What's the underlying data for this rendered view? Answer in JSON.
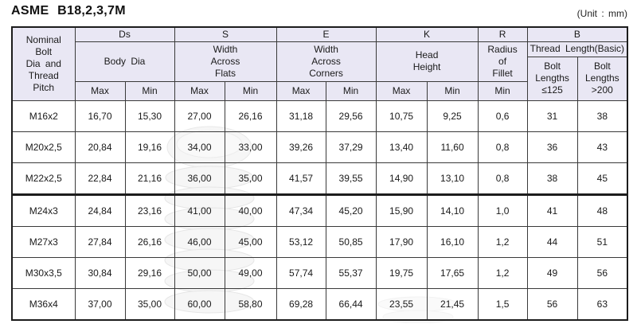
{
  "page": {
    "title": "ASME B18,2,3,7M",
    "unit": "(Unit : mm)"
  },
  "colors": {
    "header_bg": "#e9e7f4",
    "border": "#1c1c1c",
    "text": "#1a1a1a"
  },
  "table": {
    "nominal_header": "Nominal\nBolt\nDia and\nThread\nPitch",
    "groups": [
      {
        "code": "Ds",
        "desc": "Body Dia",
        "sub": [
          "Max",
          "Min"
        ]
      },
      {
        "code": "S",
        "desc": "Width\nAcross\nFlats",
        "sub": [
          "Max",
          "Min"
        ]
      },
      {
        "code": "E",
        "desc": "Width\nAcross\nCorners",
        "sub": [
          "Max",
          "Min"
        ]
      },
      {
        "code": "K",
        "desc": "Head\nHeight",
        "sub": [
          "Max",
          "Min"
        ]
      },
      {
        "code": "R",
        "desc": "Radius\nof\nFillet",
        "sub": [
          "Min"
        ]
      },
      {
        "code": "B",
        "desc": "Thread Length(Basic)",
        "sub": [
          "Bolt\nLengths\n≤125",
          "Bolt\nLengths\n>200"
        ]
      }
    ],
    "sections": [
      {
        "rows": [
          {
            "label": "M16x2",
            "values": [
              "16,70",
              "15,30",
              "27,00",
              "26,16",
              "31,18",
              "29,56",
              "10,75",
              "9,25",
              "0,6",
              "31",
              "38"
            ]
          },
          {
            "label": "M20x2,5",
            "values": [
              "20,84",
              "19,16",
              "34,00",
              "33,00",
              "39,26",
              "37,29",
              "13,40",
              "11,60",
              "0,8",
              "36",
              "43"
            ]
          },
          {
            "label": "M22x2,5",
            "values": [
              "22,84",
              "21,16",
              "36,00",
              "35,00",
              "41,57",
              "39,55",
              "14,90",
              "13,10",
              "0,8",
              "38",
              "45"
            ]
          }
        ]
      },
      {
        "rows": [
          {
            "label": "M24x3",
            "values": [
              "24,84",
              "23,16",
              "41,00",
              "40,00",
              "47,34",
              "45,20",
              "15,90",
              "14,10",
              "1,0",
              "41",
              "48"
            ]
          },
          {
            "label": "M27x3",
            "values": [
              "27,84",
              "26,16",
              "46,00",
              "45,00",
              "53,12",
              "50,85",
              "17,90",
              "16,10",
              "1,2",
              "44",
              "51"
            ]
          },
          {
            "label": "M30x3,5",
            "values": [
              "30,84",
              "29,16",
              "50,00",
              "49,00",
              "57,74",
              "55,37",
              "19,75",
              "17,65",
              "1,2",
              "49",
              "56"
            ]
          },
          {
            "label": "M36x4",
            "values": [
              "37,00",
              "35,00",
              "60,00",
              "58,80",
              "69,28",
              "66,44",
              "23,55",
              "21,45",
              "1,5",
              "56",
              "63"
            ]
          }
        ]
      }
    ]
  }
}
